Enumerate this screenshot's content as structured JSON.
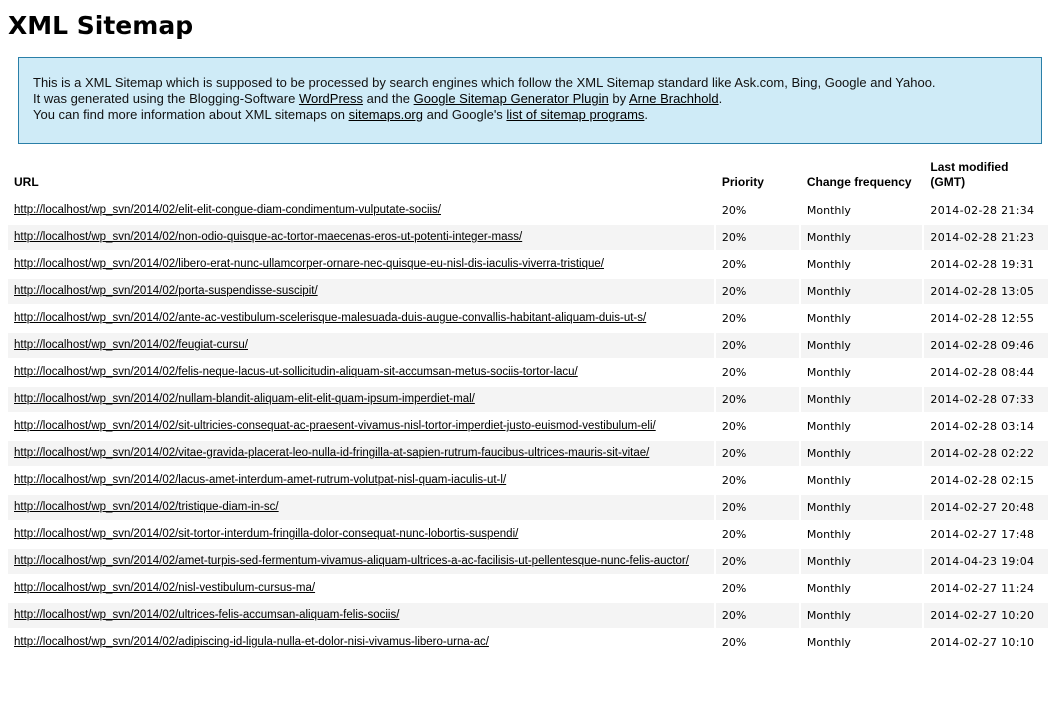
{
  "title": "XML Sitemap",
  "intro": {
    "line1": "This is a XML Sitemap which is supposed to be processed by search engines which follow the XML Sitemap standard like Ask.com, Bing, Google and Yahoo.",
    "line2_a": "It was generated using the Blogging-Software ",
    "link_wordpress": "WordPress",
    "line2_b": " and the ",
    "link_plugin": "Google Sitemap Generator Plugin",
    "line2_c": " by ",
    "link_author": "Arne Brachhold",
    "line2_d": ".",
    "line3_a": "You can find more information about XML sitemaps on ",
    "link_sitemaps": "sitemaps.org",
    "line3_b": " and Google's ",
    "link_programs": "list of sitemap programs",
    "line3_c": "."
  },
  "table": {
    "headers": {
      "url": "URL",
      "priority": "Priority",
      "change": "Change frequency",
      "modified": "Last modified (GMT)"
    },
    "rows": [
      {
        "url": "http://localhost/wp_svn/2014/02/elit-elit-congue-diam-condimentum-vulputate-sociis/",
        "priority": "20%",
        "change": "Monthly",
        "modified": "2014-02-28 21:34"
      },
      {
        "url": "http://localhost/wp_svn/2014/02/non-odio-quisque-ac-tortor-maecenas-eros-ut-potenti-integer-mass/",
        "priority": "20%",
        "change": "Monthly",
        "modified": "2014-02-28 21:23"
      },
      {
        "url": "http://localhost/wp_svn/2014/02/libero-erat-nunc-ullamcorper-ornare-nec-quisque-eu-nisl-dis-iaculis-viverra-tristique/",
        "priority": "20%",
        "change": "Monthly",
        "modified": "2014-02-28 19:31"
      },
      {
        "url": "http://localhost/wp_svn/2014/02/porta-suspendisse-suscipit/",
        "priority": "20%",
        "change": "Monthly",
        "modified": "2014-02-28 13:05"
      },
      {
        "url": "http://localhost/wp_svn/2014/02/ante-ac-vestibulum-scelerisque-malesuada-duis-augue-convallis-habitant-aliquam-duis-ut-s/",
        "priority": "20%",
        "change": "Monthly",
        "modified": "2014-02-28 12:55"
      },
      {
        "url": "http://localhost/wp_svn/2014/02/feugiat-cursu/",
        "priority": "20%",
        "change": "Monthly",
        "modified": "2014-02-28 09:46"
      },
      {
        "url": "http://localhost/wp_svn/2014/02/felis-neque-lacus-ut-sollicitudin-aliquam-sit-accumsan-metus-sociis-tortor-lacu/",
        "priority": "20%",
        "change": "Monthly",
        "modified": "2014-02-28 08:44"
      },
      {
        "url": "http://localhost/wp_svn/2014/02/nullam-blandit-aliquam-elit-elit-quam-ipsum-imperdiet-mal/",
        "priority": "20%",
        "change": "Monthly",
        "modified": "2014-02-28 07:33"
      },
      {
        "url": "http://localhost/wp_svn/2014/02/sit-ultricies-consequat-ac-praesent-vivamus-nisl-tortor-imperdiet-justo-euismod-vestibulum-eli/",
        "priority": "20%",
        "change": "Monthly",
        "modified": "2014-02-28 03:14"
      },
      {
        "url": "http://localhost/wp_svn/2014/02/vitae-gravida-placerat-leo-nulla-id-fringilla-at-sapien-rutrum-faucibus-ultrices-mauris-sit-vitae/",
        "priority": "20%",
        "change": "Monthly",
        "modified": "2014-02-28 02:22"
      },
      {
        "url": "http://localhost/wp_svn/2014/02/lacus-amet-interdum-amet-rutrum-volutpat-nisl-quam-iaculis-ut-l/",
        "priority": "20%",
        "change": "Monthly",
        "modified": "2014-02-28 02:15"
      },
      {
        "url": "http://localhost/wp_svn/2014/02/tristique-diam-in-sc/",
        "priority": "20%",
        "change": "Monthly",
        "modified": "2014-02-27 20:48"
      },
      {
        "url": "http://localhost/wp_svn/2014/02/sit-tortor-interdum-fringilla-dolor-consequat-nunc-lobortis-suspendi/",
        "priority": "20%",
        "change": "Monthly",
        "modified": "2014-02-27 17:48"
      },
      {
        "url": "http://localhost/wp_svn/2014/02/amet-turpis-sed-fermentum-vivamus-aliquam-ultrices-a-ac-facilisis-ut-pellentesque-nunc-felis-auctor/",
        "priority": "20%",
        "change": "Monthly",
        "modified": "2014-04-23 19:04"
      },
      {
        "url": "http://localhost/wp_svn/2014/02/nisl-vestibulum-cursus-ma/",
        "priority": "20%",
        "change": "Monthly",
        "modified": "2014-02-27 11:24"
      },
      {
        "url": "http://localhost/wp_svn/2014/02/ultrices-felis-accumsan-aliquam-felis-sociis/",
        "priority": "20%",
        "change": "Monthly",
        "modified": "2014-02-27 10:20"
      },
      {
        "url": "http://localhost/wp_svn/2014/02/adipiscing-id-ligula-nulla-et-dolor-nisi-vivamus-libero-urna-ac/",
        "priority": "20%",
        "change": "Monthly",
        "modified": "2014-02-27 10:10"
      }
    ]
  },
  "colors": {
    "intro_bg": "#cfebf7",
    "intro_border": "#2a7fa8",
    "row_alt": "#f4f4f4"
  }
}
